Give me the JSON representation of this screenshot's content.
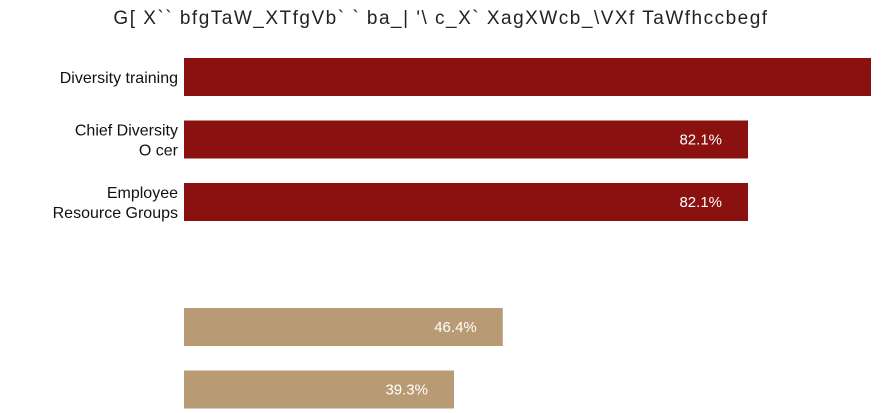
{
  "chart_data": {
    "type": "bar",
    "orientation": "horizontal",
    "title": "G[ X`` bfgTaW_XTfgVb` ` ba_| '\\ c_X` XagXWcb_\\VXf TaWfhccbegf",
    "categories": [
      [
        "Diversity training"
      ],
      [
        "Chief Diversity",
        "O   cer"
      ],
      [
        "Employee",
        "Resource Groups"
      ],
      [],
      [],
      []
    ],
    "values": [
      100,
      82.1,
      82.1,
      null,
      46.4,
      39.3
    ],
    "value_labels": [
      "",
      "82.1%",
      "82.1%",
      "",
      "46.4%",
      "39.3%"
    ],
    "bar_colors": [
      "#8b1010",
      "#8b1010",
      "#8b1010",
      "#8b1010",
      "#b89b74",
      "#b89b74"
    ],
    "xlim": [
      0,
      100
    ],
    "grid": false,
    "legend": "none"
  }
}
